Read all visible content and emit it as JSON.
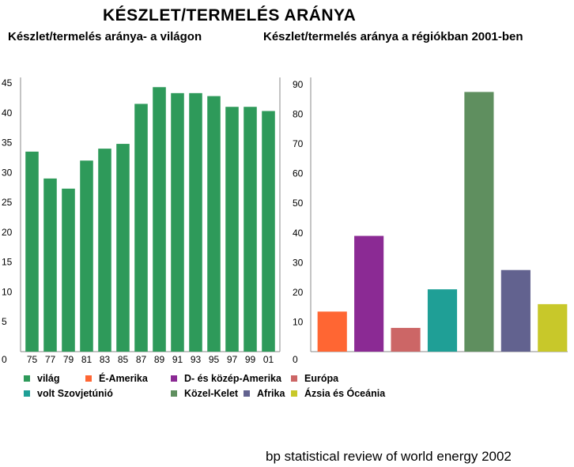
{
  "titles": {
    "main": "KÉSZLET/TERMELÉS ARÁNYA",
    "left": "Készlet/termelés aránya- a világon",
    "right": "Készlet/termelés aránya a régiókban 2001-ben"
  },
  "source": "bp statistical review of world energy 2002",
  "colors": {
    "world": "#2e9a5a",
    "north_america": "#ff6633",
    "south_central_america": "#8b2a94",
    "europe": "#cc6666",
    "former_soviet_union": "#1f9f96",
    "middle_east": "#5f8f5f",
    "africa": "#62628f",
    "asia_pacific": "#c8c82a"
  },
  "legend": [
    {
      "label": "világ",
      "color_key": "world",
      "icon": "square-swatch"
    },
    {
      "label": "É-Amerika",
      "color_key": "north_america",
      "icon": "square-swatch"
    },
    {
      "label": "D- és közép-Amerika",
      "color_key": "south_central_america",
      "icon": "square-swatch"
    },
    {
      "label": "Európa",
      "color_key": "europe",
      "icon": "square-swatch"
    },
    {
      "label": "volt Szovjetúnió",
      "color_key": "former_soviet_union",
      "icon": "square-swatch"
    },
    {
      "label": "Közel-Kelet",
      "color_key": "middle_east",
      "icon": "square-swatch"
    },
    {
      "label": "Afrika",
      "color_key": "africa",
      "icon": "square-swatch"
    },
    {
      "label": "Ázsia és Óceánia",
      "color_key": "asia_pacific",
      "icon": "square-swatch"
    }
  ],
  "chart_data": [
    {
      "type": "bar",
      "title": "Készlet/termelés aránya- a világon",
      "categories": [
        "75",
        "77",
        "79",
        "81",
        "83",
        "85",
        "87",
        "89",
        "91",
        "93",
        "95",
        "97",
        "99",
        "01"
      ],
      "values": [
        33.5,
        29,
        27.3,
        32,
        34,
        34.8,
        41.5,
        44.3,
        43.3,
        43.3,
        42.8,
        41,
        41,
        40.3
      ],
      "ylim": [
        0,
        45
      ],
      "yticks": [
        0,
        5,
        10,
        15,
        20,
        25,
        30,
        35,
        40,
        45
      ],
      "color_key": "world",
      "grid": false,
      "legend": "bottom"
    },
    {
      "type": "bar",
      "title": "Készlet/termelés aránya a régiókban 2001-ben",
      "categories": [
        "É-Amerika",
        "D- és közép-Amerika",
        "Európa",
        "volt Szovjetúnió",
        "Közel-Kelet",
        "Afrika",
        "Ázsia és Óceánia"
      ],
      "values": [
        13.5,
        39,
        8,
        21,
        87.5,
        27.5,
        16
      ],
      "color_keys": [
        "north_america",
        "south_central_america",
        "europe",
        "former_soviet_union",
        "middle_east",
        "africa",
        "asia_pacific"
      ],
      "ylim": [
        0,
        90
      ],
      "yticks": [
        0,
        10,
        20,
        30,
        40,
        50,
        60,
        70,
        80,
        90
      ],
      "grid": false,
      "legend": "bottom"
    }
  ]
}
